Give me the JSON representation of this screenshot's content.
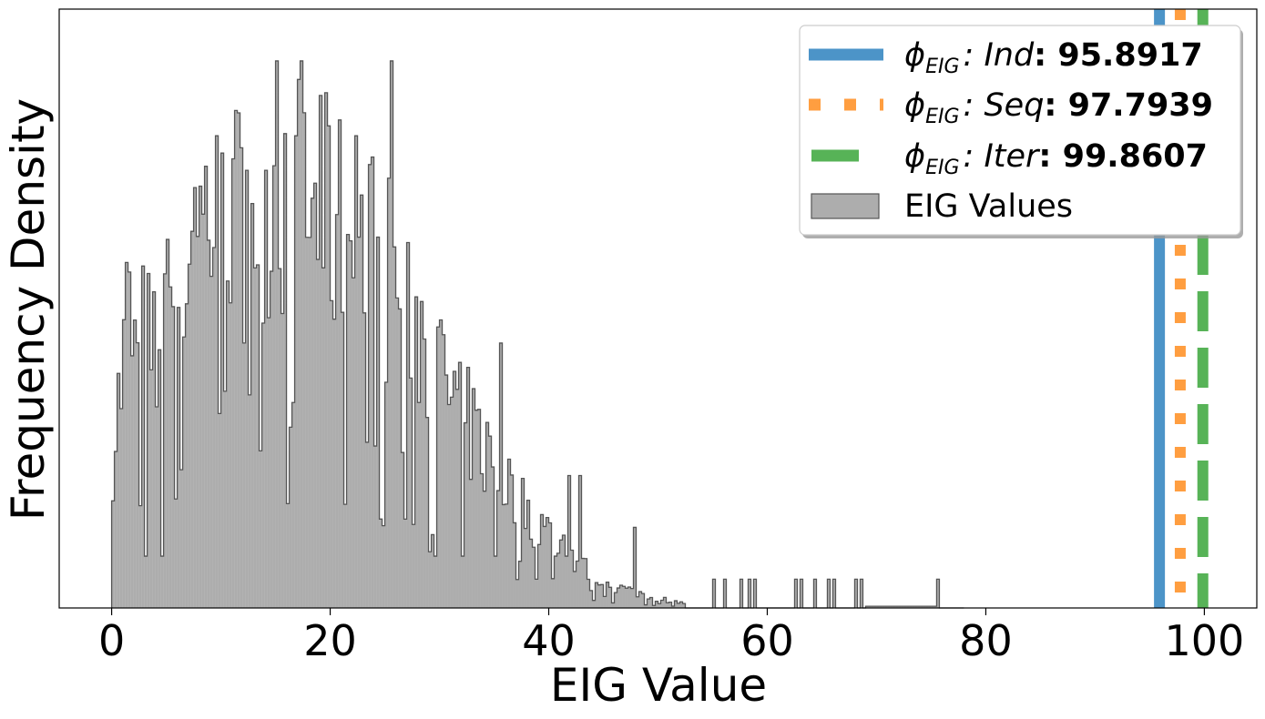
{
  "chart_data": {
    "type": "histogram",
    "title": "",
    "xlabel": "EIG Value",
    "ylabel": "Frequency Density",
    "xlim": [
      -4.8,
      104.8
    ],
    "ylim": [
      0,
      1.04
    ],
    "xticks": [
      0,
      20,
      40,
      60,
      80,
      100
    ],
    "xtick_labels": [
      "0",
      "20",
      "40",
      "60",
      "80",
      "100"
    ],
    "yticks_shown": false,
    "grid": false,
    "legend_position": "upper right",
    "histogram": {
      "name": "EIG Values",
      "bin_start": 0,
      "bin_width": 0.25,
      "color": "#adadad",
      "edge_color": "#555555",
      "density_profile": [
        [
          0.0,
          0.28
        ],
        [
          1.5,
          0.52
        ],
        [
          4.0,
          0.48
        ],
        [
          6.0,
          0.62
        ],
        [
          8.0,
          0.72
        ],
        [
          10.0,
          0.76
        ],
        [
          12.0,
          0.73
        ],
        [
          14.0,
          0.8
        ],
        [
          16.0,
          0.78
        ],
        [
          18.0,
          0.74
        ],
        [
          20.0,
          0.72
        ],
        [
          22.0,
          0.68
        ],
        [
          24.0,
          0.66
        ],
        [
          26.0,
          0.6
        ],
        [
          28.0,
          0.54
        ],
        [
          30.0,
          0.44
        ],
        [
          32.0,
          0.36
        ],
        [
          34.0,
          0.3
        ],
        [
          36.0,
          0.24
        ],
        [
          38.0,
          0.18
        ],
        [
          40.0,
          0.14
        ],
        [
          42.0,
          0.1
        ],
        [
          44.0,
          0.06
        ],
        [
          46.0,
          0.04
        ],
        [
          48.0,
          0.03
        ],
        [
          50.0,
          0.018
        ],
        [
          53.0,
          0.006
        ],
        [
          56.0,
          0.003
        ],
        [
          60.0,
          0.002
        ],
        [
          70.0,
          0.001
        ],
        [
          76.0,
          0.0005
        ],
        [
          77.0,
          0
        ]
      ],
      "sparse_bars": [
        [
          55.0,
          0.05
        ],
        [
          56.2,
          0.05
        ],
        [
          57.7,
          0.05
        ],
        [
          58.3,
          0.05
        ],
        [
          58.8,
          0.05
        ],
        [
          62.6,
          0.05
        ],
        [
          63.2,
          0.05
        ],
        [
          64.4,
          0.05
        ],
        [
          65.7,
          0.05
        ],
        [
          66.1,
          0.05
        ],
        [
          68.2,
          0.05
        ],
        [
          68.6,
          0.05
        ],
        [
          75.7,
          0.05
        ]
      ],
      "low_floor_range": [
        69.0,
        75.7,
        0.003
      ],
      "peaks": [
        [
          1.4,
          0.6
        ],
        [
          2.1,
          0.5
        ],
        [
          5.1,
          0.64
        ],
        [
          7.7,
          0.73
        ],
        [
          9.7,
          0.82
        ],
        [
          10.0,
          0.79
        ],
        [
          11.1,
          0.78
        ],
        [
          12.4,
          0.76
        ],
        [
          14.0,
          0.76
        ],
        [
          15.1,
          0.95
        ],
        [
          16.8,
          0.82
        ],
        [
          17.3,
          0.95
        ],
        [
          17.7,
          0.86
        ],
        [
          19.1,
          0.89
        ],
        [
          22.3,
          0.82
        ],
        [
          23.6,
          0.77
        ],
        [
          25.7,
          0.95
        ],
        [
          35.7,
          0.46
        ],
        [
          41.8,
          0.23
        ],
        [
          42.9,
          0.23
        ],
        [
          47.9,
          0.14
        ]
      ],
      "dips": [
        [
          3.2,
          0.09
        ],
        [
          4.6,
          0.09
        ],
        [
          6.3,
          0.24
        ],
        [
          12.5,
          0.37
        ],
        [
          21.3,
          0.18
        ],
        [
          26.5,
          0.27
        ],
        [
          29.5,
          0.09
        ],
        [
          32.0,
          0.09
        ],
        [
          35.0,
          0.09
        ],
        [
          38.8,
          0.05
        ],
        [
          40.7,
          0.09
        ],
        [
          41.5,
          0.09
        ],
        [
          44.5,
          0.04
        ],
        [
          45.2,
          0.02
        ]
      ],
      "random_seed": 7
    },
    "vlines": [
      {
        "name": "φ_EIG : Ind",
        "label_prefix": "ϕ",
        "label_sub": "EIG",
        "label_name": ": Ind",
        "value": 95.8917,
        "value_label": ": 95.8917",
        "color": "#4c94c8",
        "style": "solid"
      },
      {
        "name": "φ_EIG : Seq",
        "label_prefix": "ϕ",
        "label_sub": "EIG",
        "label_name": ": Seq",
        "value": 97.7939,
        "value_label": ": 97.7939",
        "color": "#ff9e40",
        "style": "dotted"
      },
      {
        "name": "φ_EIG : Iter",
        "label_prefix": "ϕ",
        "label_sub": "EIG",
        "label_name": ": Iter",
        "value": 99.8607,
        "value_label": ": 99.8607",
        "color": "#57b357",
        "style": "dashed"
      }
    ],
    "legend": [
      {
        "kind": "line",
        "ref": 0
      },
      {
        "kind": "line",
        "ref": 1
      },
      {
        "kind": "line",
        "ref": 2
      },
      {
        "kind": "patch",
        "label": "EIG Values"
      }
    ]
  }
}
